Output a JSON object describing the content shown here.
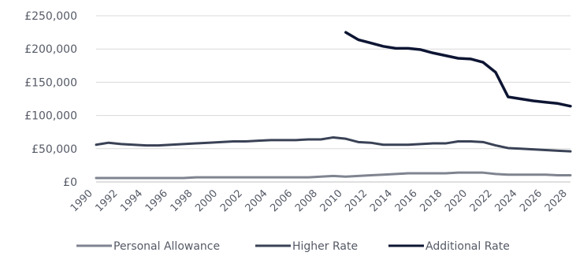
{
  "chart_data": {
    "type": "line",
    "title": "",
    "xlabel": "",
    "ylabel": "",
    "x": [
      1990,
      1991,
      1992,
      1993,
      1994,
      1995,
      1996,
      1997,
      1998,
      1999,
      2000,
      2001,
      2002,
      2003,
      2004,
      2005,
      2006,
      2007,
      2008,
      2009,
      2010,
      2011,
      2012,
      2013,
      2014,
      2015,
      2016,
      2017,
      2018,
      2019,
      2020,
      2021,
      2022,
      2023,
      2024,
      2025,
      2026,
      2027,
      2028
    ],
    "x_tick_labels": [
      "1990",
      "1992",
      "1994",
      "1996",
      "1998",
      "2000",
      "2002",
      "2004",
      "2006",
      "2008",
      "2010",
      "2012",
      "2014",
      "2016",
      "2018",
      "2020",
      "2022",
      "2024",
      "2026",
      "2028"
    ],
    "y_tick_labels": [
      "£0",
      "£50,000",
      "£100,000",
      "£150,000",
      "£200,000",
      "£250,000"
    ],
    "ylim": [
      0,
      250000
    ],
    "grid": true,
    "legend_position": "bottom",
    "series": [
      {
        "name": "Personal Allowance",
        "color": "#7f8490",
        "values": [
          6000,
          6000,
          6000,
          6000,
          6000,
          6000,
          6000,
          6000,
          7000,
          7000,
          7000,
          7000,
          7000,
          7000,
          7000,
          7000,
          7000,
          7000,
          8000,
          9000,
          8000,
          9000,
          10000,
          11000,
          12000,
          13000,
          13000,
          13000,
          13000,
          14000,
          14000,
          14000,
          12000,
          11000,
          11000,
          11000,
          11000,
          10000,
          10000
        ]
      },
      {
        "name": "Higher Rate",
        "color": "#3a4256",
        "values": [
          56000,
          59000,
          57000,
          56000,
          55000,
          55000,
          56000,
          57000,
          58000,
          59000,
          60000,
          61000,
          61000,
          62000,
          63000,
          63000,
          63000,
          64000,
          64000,
          67000,
          65000,
          60000,
          59000,
          56000,
          56000,
          56000,
          57000,
          58000,
          58000,
          61000,
          61000,
          60000,
          55000,
          51000,
          50000,
          49000,
          48000,
          47000,
          46000
        ]
      },
      {
        "name": "Additional Rate",
        "color": "#0d1533",
        "values": [
          null,
          null,
          null,
          null,
          null,
          null,
          null,
          null,
          null,
          null,
          null,
          null,
          null,
          null,
          null,
          null,
          null,
          null,
          null,
          null,
          225000,
          214000,
          209000,
          204000,
          201000,
          201000,
          199000,
          194000,
          190000,
          186000,
          185000,
          180000,
          165000,
          128000,
          125000,
          122000,
          120000,
          118000,
          114000
        ]
      }
    ]
  }
}
